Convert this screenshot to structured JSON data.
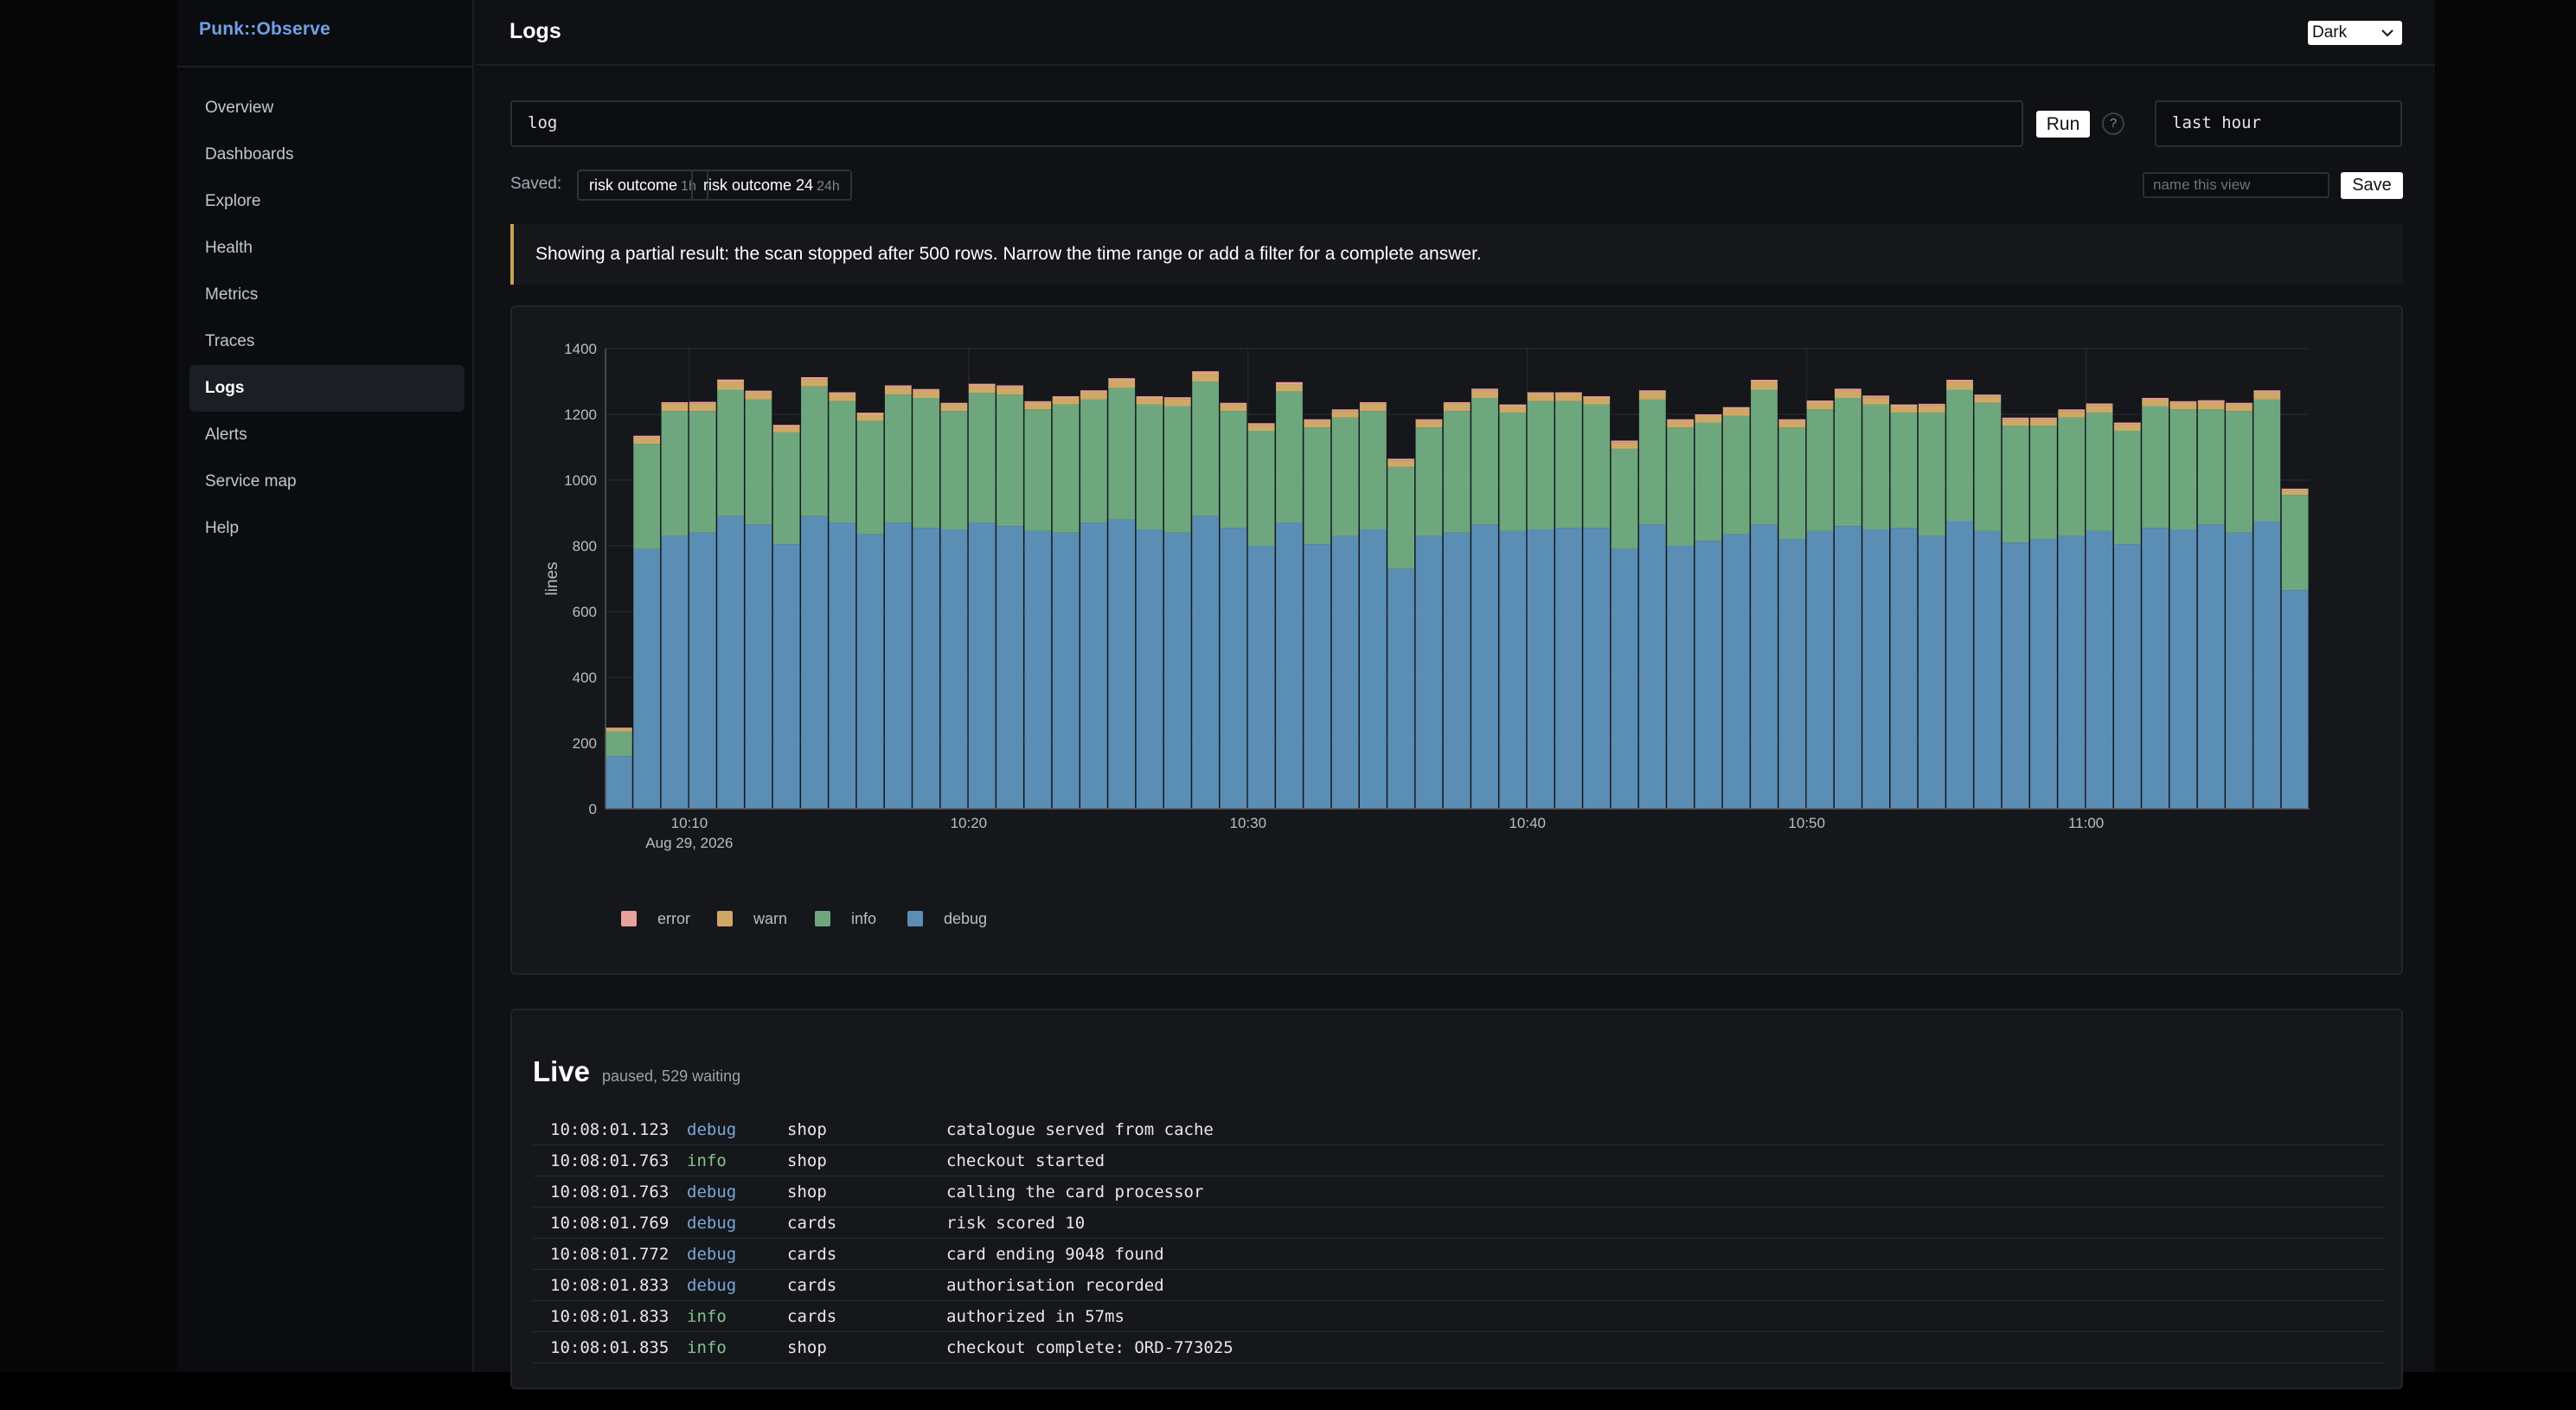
{
  "app": {
    "brand": "Punk::Observe"
  },
  "sidebar": {
    "items": [
      {
        "label": "Overview"
      },
      {
        "label": "Dashboards"
      },
      {
        "label": "Explore"
      },
      {
        "label": "Health"
      },
      {
        "label": "Metrics"
      },
      {
        "label": "Traces"
      },
      {
        "label": "Logs",
        "active": true
      },
      {
        "label": "Alerts"
      },
      {
        "label": "Service map"
      },
      {
        "label": "Help"
      }
    ]
  },
  "header": {
    "title": "Logs",
    "theme_value": "Dark"
  },
  "query": {
    "value": "log",
    "run_label": "Run",
    "help_label": "?",
    "range_value": "last hour"
  },
  "saved": {
    "label": "Saved:",
    "views": [
      {
        "name": "risk outcome",
        "age": "1h"
      },
      {
        "name": "risk outcome 24",
        "age": "24h"
      }
    ],
    "name_placeholder": "name this view",
    "save_label": "Save"
  },
  "notice": {
    "text": "Showing a partial result: the scan stopped after 500 rows. Narrow the time range or add a filter for a complete answer."
  },
  "chart_data": {
    "type": "bar",
    "stacked": true,
    "ylabel": "lines",
    "ylim": [
      0,
      1400
    ],
    "yticks": [
      0,
      200,
      400,
      600,
      800,
      1000,
      1200,
      1400
    ],
    "x_start": "10:07",
    "x_step_minutes": 1,
    "xticks": [
      {
        "label": "10:10",
        "sublabel": "Aug 29, 2026",
        "index": 3
      },
      {
        "label": "10:20",
        "index": 13
      },
      {
        "label": "10:30",
        "index": 23
      },
      {
        "label": "10:40",
        "index": 33
      },
      {
        "label": "10:50",
        "index": 43
      },
      {
        "label": "11:00",
        "index": 53
      }
    ],
    "grid": true,
    "legend_position": "bottom-left",
    "series": [
      {
        "name": "debug",
        "color": "#5a8eb5",
        "values": [
          160,
          790,
          830,
          840,
          890,
          865,
          805,
          890,
          870,
          835,
          870,
          855,
          850,
          870,
          860,
          845,
          840,
          870,
          880,
          850,
          840,
          890,
          855,
          800,
          870,
          805,
          830,
          850,
          730,
          830,
          840,
          865,
          845,
          850,
          855,
          855,
          790,
          865,
          800,
          815,
          835,
          865,
          820,
          845,
          860,
          850,
          855,
          830,
          875,
          845,
          810,
          820,
          830,
          845,
          805,
          855,
          850,
          865,
          840,
          875,
          665
        ]
      },
      {
        "name": "info",
        "color": "#6ea77e",
        "values": [
          75,
          320,
          380,
          370,
          385,
          380,
          340,
          395,
          370,
          345,
          390,
          395,
          360,
          395,
          400,
          370,
          390,
          375,
          400,
          380,
          385,
          410,
          355,
          350,
          400,
          355,
          360,
          360,
          310,
          330,
          370,
          385,
          360,
          390,
          385,
          375,
          305,
          380,
          360,
          360,
          360,
          410,
          340,
          370,
          390,
          380,
          350,
          375,
          400,
          390,
          355,
          345,
          360,
          360,
          345,
          370,
          365,
          350,
          370,
          370,
          290
        ]
      },
      {
        "name": "warn",
        "color": "#d0a866",
        "values": [
          10,
          20,
          22,
          22,
          25,
          22,
          18,
          22,
          22,
          20,
          22,
          22,
          20,
          22,
          22,
          20,
          20,
          22,
          24,
          20,
          22,
          25,
          20,
          18,
          22,
          20,
          20,
          22,
          20,
          20,
          22,
          22,
          20,
          22,
          22,
          20,
          20,
          22,
          20,
          20,
          22,
          24,
          20,
          22,
          22,
          22,
          20,
          22,
          24,
          20,
          20,
          20,
          20,
          22,
          20,
          20,
          20,
          22,
          20,
          22,
          15
        ]
      },
      {
        "name": "error",
        "color": "#e8a19d",
        "values": [
          2,
          5,
          5,
          6,
          6,
          5,
          5,
          6,
          5,
          5,
          6,
          5,
          5,
          6,
          6,
          5,
          5,
          6,
          6,
          5,
          5,
          6,
          5,
          5,
          6,
          5,
          5,
          5,
          5,
          5,
          5,
          6,
          5,
          5,
          5,
          5,
          5,
          6,
          5,
          5,
          5,
          6,
          5,
          5,
          6,
          5,
          5,
          5,
          6,
          5,
          5,
          5,
          5,
          6,
          5,
          5,
          5,
          6,
          5,
          6,
          4
        ]
      }
    ],
    "legend": [
      "error",
      "warn",
      "info",
      "debug"
    ]
  },
  "live": {
    "title": "Live",
    "status": "paused, 529 waiting",
    "rows": [
      {
        "time": "10:08:01.123",
        "level": "debug",
        "service": "shop",
        "message": "catalogue served from cache"
      },
      {
        "time": "10:08:01.763",
        "level": "info",
        "service": "shop",
        "message": "checkout started"
      },
      {
        "time": "10:08:01.763",
        "level": "debug",
        "service": "shop",
        "message": "calling the card processor"
      },
      {
        "time": "10:08:01.769",
        "level": "debug",
        "service": "cards",
        "message": "risk scored 10"
      },
      {
        "time": "10:08:01.772",
        "level": "debug",
        "service": "cards",
        "message": "card ending 9048 found"
      },
      {
        "time": "10:08:01.833",
        "level": "debug",
        "service": "cards",
        "message": "authorisation recorded"
      },
      {
        "time": "10:08:01.833",
        "level": "info",
        "service": "cards",
        "message": "authorized in 57ms"
      },
      {
        "time": "10:08:01.835",
        "level": "info",
        "service": "shop",
        "message": "checkout complete: ORD-773025"
      }
    ]
  }
}
